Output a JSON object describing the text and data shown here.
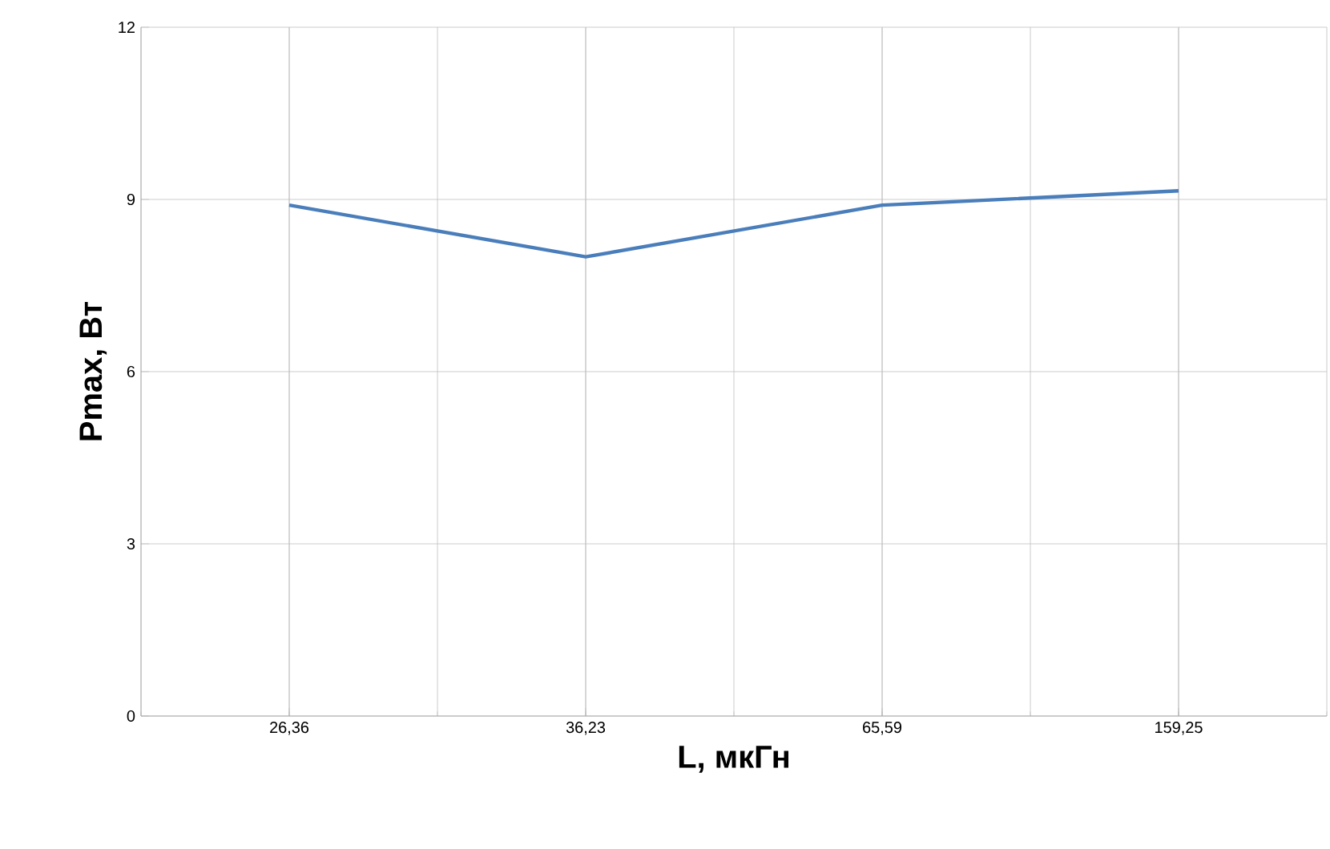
{
  "chart_data": {
    "type": "line",
    "xlabel": "L, мкГн",
    "ylabel": "Pmax, Вт",
    "categories": [
      "26,36",
      "36,23",
      "65,59",
      "159,25"
    ],
    "series": [
      {
        "color": "#4a7ebb",
        "values": [
          8.9,
          8.0,
          8.9,
          9.15
        ]
      }
    ],
    "ylim": [
      0,
      12
    ],
    "yticks": [
      0,
      3,
      6,
      9,
      12
    ],
    "grid": true,
    "marker": "none",
    "line_style": "solid"
  }
}
